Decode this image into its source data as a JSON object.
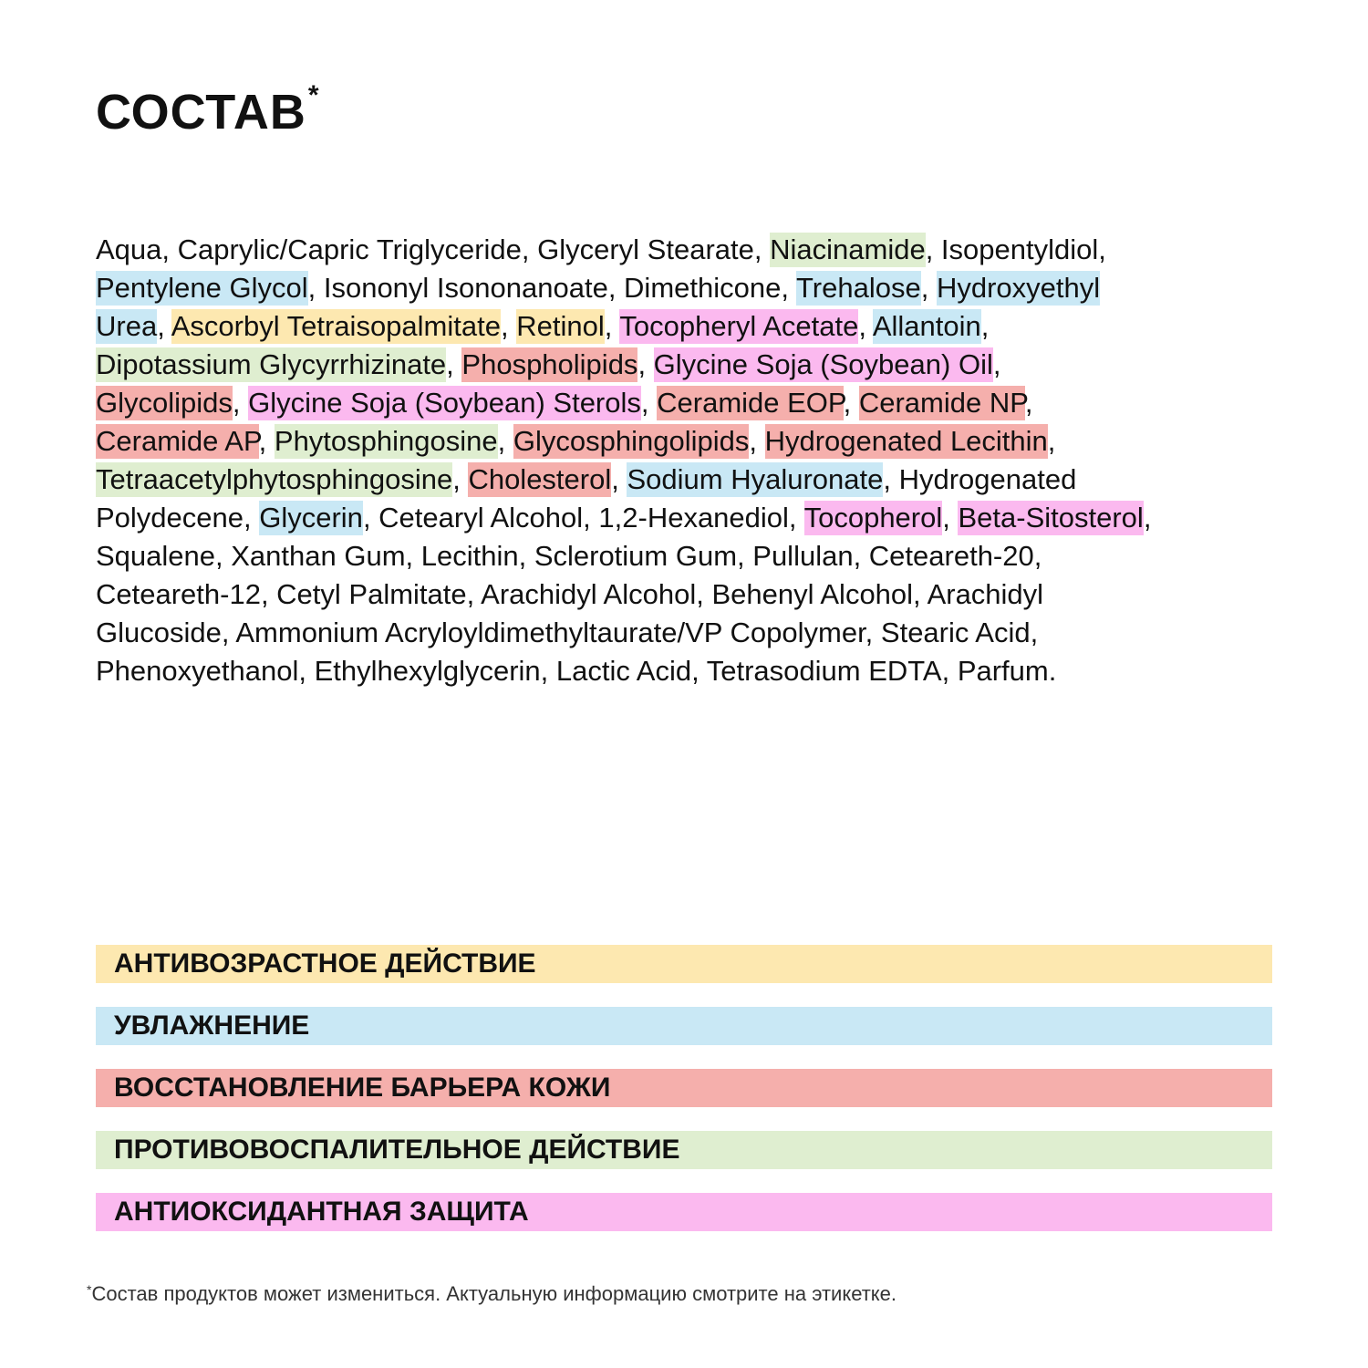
{
  "title": "СОСТАВ",
  "title_mark": "*",
  "colors": {
    "antiage": "#fde8b0",
    "moist": "#c9e8f5",
    "barrier": "#f5afac",
    "antiinf": "#dfeed0",
    "antiox": "#fbb9ef"
  },
  "ingredients": {
    "lines": [
      [
        {
          "t": "Aqua, Caprylic/Capric Triglyceride, Glyceryl Stearate, ",
          "c": ""
        },
        {
          "t": "Niacinamide",
          "c": "antiinf"
        },
        {
          "t": ", Isopentyldiol,",
          "c": ""
        }
      ],
      [
        {
          "t": "Pentylene Glycol",
          "c": "moist"
        },
        {
          "t": ", Isononyl Isononanoate, Dimethicone, ",
          "c": ""
        },
        {
          "t": "Trehalose",
          "c": "moist"
        },
        {
          "t": ", ",
          "c": ""
        },
        {
          "t": "Hydroxyethyl",
          "c": "moist"
        }
      ],
      [
        {
          "t": "Urea",
          "c": "moist"
        },
        {
          "t": ", ",
          "c": ""
        },
        {
          "t": "Ascorbyl Tetraisopalmitate",
          "c": "antiage"
        },
        {
          "t": ", ",
          "c": ""
        },
        {
          "t": "Retinol",
          "c": "antiage"
        },
        {
          "t": ", ",
          "c": ""
        },
        {
          "t": "Tocopheryl Acetate",
          "c": "antiox"
        },
        {
          "t": ", ",
          "c": ""
        },
        {
          "t": "Allantoin",
          "c": "moist"
        },
        {
          "t": ",",
          "c": ""
        }
      ],
      [
        {
          "t": "Dipotassium Glycyrrhizinate",
          "c": "antiinf"
        },
        {
          "t": ", ",
          "c": ""
        },
        {
          "t": "Phospholipids",
          "c": "barrier"
        },
        {
          "t": ", ",
          "c": ""
        },
        {
          "t": "Glycine Soja (Soybean) Oil",
          "c": "antiox"
        },
        {
          "t": ",",
          "c": ""
        }
      ],
      [
        {
          "t": "Glycolipids",
          "c": "barrier"
        },
        {
          "t": ", ",
          "c": ""
        },
        {
          "t": "Glycine Soja (Soybean) Sterols",
          "c": "antiox"
        },
        {
          "t": ", ",
          "c": ""
        },
        {
          "t": "Ceramide EOP",
          "c": "barrier"
        },
        {
          "t": ", ",
          "c": ""
        },
        {
          "t": "Ceramide NP",
          "c": "barrier"
        },
        {
          "t": ",",
          "c": ""
        }
      ],
      [
        {
          "t": "Ceramide AP",
          "c": "barrier"
        },
        {
          "t": ", ",
          "c": ""
        },
        {
          "t": "Phytosphingosine",
          "c": "antiinf"
        },
        {
          "t": ", ",
          "c": ""
        },
        {
          "t": "Glycosphingolipids",
          "c": "barrier"
        },
        {
          "t": ", ",
          "c": ""
        },
        {
          "t": "Hydrogenated Lecithin",
          "c": "barrier"
        },
        {
          "t": ",",
          "c": ""
        }
      ],
      [
        {
          "t": "Tetraacetylphytosphingosine",
          "c": "antiinf"
        },
        {
          "t": ", ",
          "c": ""
        },
        {
          "t": "Cholesterol",
          "c": "barrier"
        },
        {
          "t": ", ",
          "c": ""
        },
        {
          "t": "Sodium Hyaluronate",
          "c": "moist"
        },
        {
          "t": ", Hydrogenated",
          "c": ""
        }
      ],
      [
        {
          "t": "Polydecene, ",
          "c": ""
        },
        {
          "t": "Glycerin",
          "c": "moist"
        },
        {
          "t": ", Cetearyl Alcohol, 1,2-Hexanediol, ",
          "c": ""
        },
        {
          "t": "Tocopherol",
          "c": "antiox"
        },
        {
          "t": ", ",
          "c": ""
        },
        {
          "t": "Beta-Sitosterol",
          "c": "antiox"
        },
        {
          "t": ",",
          "c": ""
        }
      ],
      [
        {
          "t": "Squalene, Xanthan Gum, Lecithin, Sclerotium Gum, Pullulan, Ceteareth-20,",
          "c": ""
        }
      ],
      [
        {
          "t": "Ceteareth-12, Cetyl Palmitate, Arachidyl Alcohol, Behenyl Alcohol, Arachidyl",
          "c": ""
        }
      ],
      [
        {
          "t": "Glucoside, Ammonium Acryloyldimethyltaurate/VP Copolymer, Stearic Acid,",
          "c": ""
        }
      ],
      [
        {
          "t": "Phenoxyethanol, Ethylhexylglycerin, Lactic Acid, Tetrasodium EDTA, Parfum.",
          "c": ""
        }
      ]
    ]
  },
  "legend": [
    {
      "label": "АНТИВОЗРАСТНОЕ ДЕЙСТВИЕ",
      "c": "antiage"
    },
    {
      "label": "УВЛАЖНЕНИЕ",
      "c": "moist"
    },
    {
      "label": "ВОССТАНОВЛЕНИЕ БАРЬЕРА КОЖИ",
      "c": "barrier"
    },
    {
      "label": "ПРОТИВОВОСПАЛИТЕЛЬНОЕ ДЕЙСТВИЕ",
      "c": "antiinf"
    },
    {
      "label": "АНТИОКСИДАНТНАЯ ЗАЩИТА",
      "c": "antiox"
    }
  ],
  "footnote": {
    "mark": "*",
    "text": "Состав продуктов может измениться. Актуальную информацию смотрите на этикетке."
  }
}
